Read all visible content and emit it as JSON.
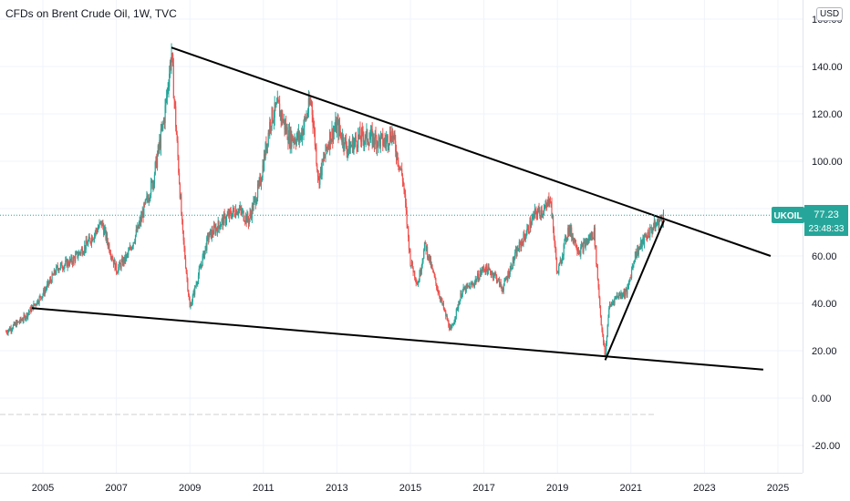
{
  "title": "CFDs on Brent Crude Oil, 1W, TVC",
  "currency_badge": "USD",
  "price_label": {
    "symbol": "UKOIL",
    "price": "77.23",
    "countdown": "23:48:33"
  },
  "colors": {
    "up": "#26a69a",
    "down": "#ef5350",
    "price_line": "#26a69a",
    "trendline": "#000000"
  },
  "chart_data": {
    "type": "candlestick",
    "title": "CFDs on Brent Crude Oil, 1W, TVC",
    "x_ticks": [
      "2005",
      "2007",
      "2009",
      "2011",
      "2013",
      "2015",
      "2017",
      "2019",
      "2021",
      "2023",
      "2025"
    ],
    "y_ticks": [
      "-20.00",
      "0.00",
      "20.00",
      "40.00",
      "60.00",
      "80.00",
      "100.00",
      "120.00",
      "140.00",
      "160.00"
    ],
    "ylim": [
      -24,
      162
    ],
    "xlim": [
      2004.0,
      2025.4
    ],
    "grid": true,
    "last_price": 77.23,
    "price_path": [
      [
        2004.0,
        28
      ],
      [
        2004.5,
        34
      ],
      [
        2005.0,
        44
      ],
      [
        2005.4,
        55
      ],
      [
        2005.8,
        58
      ],
      [
        2006.2,
        65
      ],
      [
        2006.6,
        74
      ],
      [
        2007.0,
        54
      ],
      [
        2007.3,
        60
      ],
      [
        2007.6,
        72
      ],
      [
        2008.0,
        92
      ],
      [
        2008.3,
        118
      ],
      [
        2008.5,
        146
      ],
      [
        2008.6,
        120
      ],
      [
        2008.8,
        70
      ],
      [
        2009.0,
        38
      ],
      [
        2009.2,
        50
      ],
      [
        2009.5,
        68
      ],
      [
        2009.9,
        75
      ],
      [
        2010.3,
        80
      ],
      [
        2010.6,
        75
      ],
      [
        2010.9,
        90
      ],
      [
        2011.2,
        118
      ],
      [
        2011.4,
        123
      ],
      [
        2011.7,
        110
      ],
      [
        2012.0,
        110
      ],
      [
        2012.3,
        126
      ],
      [
        2012.5,
        92
      ],
      [
        2012.8,
        110
      ],
      [
        2013.0,
        115
      ],
      [
        2013.3,
        105
      ],
      [
        2013.6,
        110
      ],
      [
        2013.9,
        110
      ],
      [
        2014.3,
        108
      ],
      [
        2014.5,
        112
      ],
      [
        2014.8,
        92
      ],
      [
        2015.0,
        58
      ],
      [
        2015.2,
        48
      ],
      [
        2015.4,
        65
      ],
      [
        2015.7,
        48
      ],
      [
        2015.9,
        38
      ],
      [
        2016.1,
        28
      ],
      [
        2016.4,
        45
      ],
      [
        2016.7,
        48
      ],
      [
        2017.0,
        55
      ],
      [
        2017.3,
        52
      ],
      [
        2017.5,
        46
      ],
      [
        2017.9,
        62
      ],
      [
        2018.1,
        68
      ],
      [
        2018.4,
        78
      ],
      [
        2018.7,
        80
      ],
      [
        2018.8,
        86
      ],
      [
        2019.0,
        52
      ],
      [
        2019.3,
        72
      ],
      [
        2019.6,
        62
      ],
      [
        2019.9,
        68
      ],
      [
        2020.0,
        70
      ],
      [
        2020.2,
        30
      ],
      [
        2020.3,
        17
      ],
      [
        2020.4,
        38
      ],
      [
        2020.6,
        43
      ],
      [
        2020.9,
        45
      ],
      [
        2021.1,
        60
      ],
      [
        2021.4,
        68
      ],
      [
        2021.6,
        72
      ],
      [
        2021.8,
        75
      ],
      [
        2021.9,
        77.23
      ]
    ],
    "trendlines": [
      {
        "name": "upper",
        "from": [
          2008.5,
          148
        ],
        "to": [
          2024.8,
          60
        ]
      },
      {
        "name": "lower",
        "from": [
          2004.7,
          38
        ],
        "to": [
          2024.6,
          12
        ]
      },
      {
        "name": "rising",
        "from": [
          2020.3,
          16
        ],
        "to": [
          2021.9,
          75
        ]
      }
    ]
  }
}
